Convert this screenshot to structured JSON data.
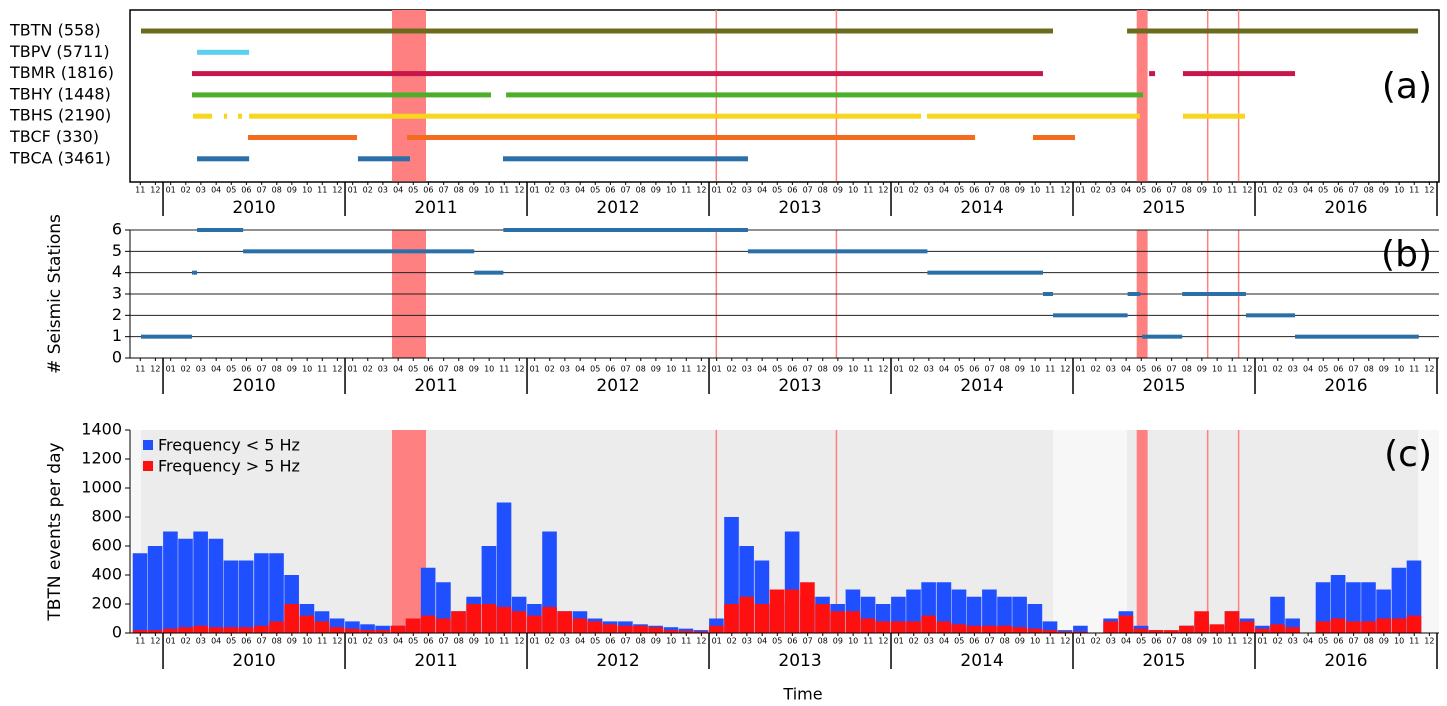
{
  "time_axis": {
    "xlim": [
      2009.835,
      2017.0
    ],
    "xlabel": "Time",
    "month_ticks": [
      {
        "value": 2009.875,
        "label": "11"
      },
      {
        "value": 2009.958,
        "label": "12"
      },
      {
        "value": 2010.042,
        "label": "01"
      },
      {
        "value": 2010.125,
        "label": "02"
      },
      {
        "value": 2010.208,
        "label": "03"
      },
      {
        "value": 2010.292,
        "label": "04"
      },
      {
        "value": 2010.375,
        "label": "05"
      },
      {
        "value": 2010.458,
        "label": "06"
      },
      {
        "value": 2010.542,
        "label": "07"
      },
      {
        "value": 2010.625,
        "label": "08"
      },
      {
        "value": 2010.708,
        "label": "09"
      },
      {
        "value": 2010.792,
        "label": "10"
      },
      {
        "value": 2010.875,
        "label": "11"
      },
      {
        "value": 2010.958,
        "label": "12"
      },
      {
        "value": 2011.042,
        "label": "01"
      },
      {
        "value": 2011.125,
        "label": "02"
      },
      {
        "value": 2011.208,
        "label": "03"
      },
      {
        "value": 2011.292,
        "label": "04"
      },
      {
        "value": 2011.375,
        "label": "05"
      },
      {
        "value": 2011.458,
        "label": "06"
      },
      {
        "value": 2011.542,
        "label": "07"
      },
      {
        "value": 2011.625,
        "label": "08"
      },
      {
        "value": 2011.708,
        "label": "09"
      },
      {
        "value": 2011.792,
        "label": "10"
      },
      {
        "value": 2011.875,
        "label": "11"
      },
      {
        "value": 2011.958,
        "label": "12"
      },
      {
        "value": 2012.042,
        "label": "01"
      },
      {
        "value": 2012.125,
        "label": "02"
      },
      {
        "value": 2012.208,
        "label": "03"
      },
      {
        "value": 2012.292,
        "label": "04"
      },
      {
        "value": 2012.375,
        "label": "05"
      },
      {
        "value": 2012.458,
        "label": "06"
      },
      {
        "value": 2012.542,
        "label": "07"
      },
      {
        "value": 2012.625,
        "label": "08"
      },
      {
        "value": 2012.708,
        "label": "09"
      },
      {
        "value": 2012.792,
        "label": "10"
      },
      {
        "value": 2012.875,
        "label": "11"
      },
      {
        "value": 2012.958,
        "label": "12"
      },
      {
        "value": 2013.042,
        "label": "01"
      },
      {
        "value": 2013.125,
        "label": "02"
      },
      {
        "value": 2013.208,
        "label": "03"
      },
      {
        "value": 2013.292,
        "label": "04"
      },
      {
        "value": 2013.375,
        "label": "05"
      },
      {
        "value": 2013.458,
        "label": "06"
      },
      {
        "value": 2013.542,
        "label": "07"
      },
      {
        "value": 2013.625,
        "label": "08"
      },
      {
        "value": 2013.708,
        "label": "09"
      },
      {
        "value": 2013.792,
        "label": "10"
      },
      {
        "value": 2013.875,
        "label": "11"
      },
      {
        "value": 2013.958,
        "label": "12"
      },
      {
        "value": 2014.042,
        "label": "01"
      },
      {
        "value": 2014.125,
        "label": "02"
      },
      {
        "value": 2014.208,
        "label": "03"
      },
      {
        "value": 2014.292,
        "label": "04"
      },
      {
        "value": 2014.375,
        "label": "05"
      },
      {
        "value": 2014.458,
        "label": "06"
      },
      {
        "value": 2014.542,
        "label": "07"
      },
      {
        "value": 2014.625,
        "label": "08"
      },
      {
        "value": 2014.708,
        "label": "09"
      },
      {
        "value": 2014.792,
        "label": "10"
      },
      {
        "value": 2014.875,
        "label": "11"
      },
      {
        "value": 2014.958,
        "label": "12"
      },
      {
        "value": 2015.042,
        "label": "01"
      },
      {
        "value": 2015.125,
        "label": "02"
      },
      {
        "value": 2015.208,
        "label": "03"
      },
      {
        "value": 2015.292,
        "label": "04"
      },
      {
        "value": 2015.375,
        "label": "05"
      },
      {
        "value": 2015.458,
        "label": "06"
      },
      {
        "value": 2015.542,
        "label": "07"
      },
      {
        "value": 2015.625,
        "label": "08"
      },
      {
        "value": 2015.708,
        "label": "09"
      },
      {
        "value": 2015.792,
        "label": "10"
      },
      {
        "value": 2015.875,
        "label": "11"
      },
      {
        "value": 2015.958,
        "label": "12"
      },
      {
        "value": 2016.042,
        "label": "01"
      },
      {
        "value": 2016.125,
        "label": "02"
      },
      {
        "value": 2016.208,
        "label": "03"
      },
      {
        "value": 2016.292,
        "label": "04"
      },
      {
        "value": 2016.375,
        "label": "05"
      },
      {
        "value": 2016.458,
        "label": "06"
      },
      {
        "value": 2016.542,
        "label": "07"
      },
      {
        "value": 2016.625,
        "label": "08"
      },
      {
        "value": 2016.708,
        "label": "09"
      },
      {
        "value": 2016.792,
        "label": "10"
      },
      {
        "value": 2016.875,
        "label": "11"
      },
      {
        "value": 2016.958,
        "label": "12"
      }
    ],
    "year_ticks": [
      {
        "value": 2010.5,
        "label": "2010"
      },
      {
        "value": 2011.5,
        "label": "2011"
      },
      {
        "value": 2012.5,
        "label": "2012"
      },
      {
        "value": 2013.5,
        "label": "2013"
      },
      {
        "value": 2014.5,
        "label": "2014"
      },
      {
        "value": 2015.5,
        "label": "2015"
      },
      {
        "value": 2016.5,
        "label": "2016"
      }
    ]
  },
  "highlights": {
    "spans": [
      [
        2011.258,
        2011.445
      ],
      [
        2015.35,
        2015.41
      ]
    ],
    "lines": [
      2013.04,
      2013.7,
      2015.74,
      2015.91
    ],
    "color": "#ff8080"
  },
  "chart_data": [
    {
      "type": "timeline",
      "label": "(a)",
      "stations": [
        {
          "name": "TBTN (558)",
          "color": "#6b6b1e",
          "segments": [
            [
              2009.879,
              2014.89
            ],
            [
              2015.297,
              2016.896
            ]
          ]
        },
        {
          "name": "TBPV (5711)",
          "color": "#5bd0f0",
          "segments": [
            [
              2010.187,
              2010.473
            ]
          ]
        },
        {
          "name": "TBMR (1816)",
          "color": "#c8154a",
          "segments": [
            [
              2010.159,
              2014.835
            ],
            [
              2015.418,
              2015.451
            ],
            [
              2015.604,
              2016.22
            ]
          ]
        },
        {
          "name": "TBHY (1448)",
          "color": "#4caf2a",
          "segments": [
            [
              2010.159,
              2011.802
            ],
            [
              2011.885,
              2015.385
            ]
          ]
        },
        {
          "name": "TBHS (2190)",
          "color": "#f7d520",
          "segments": [
            [
              2010.165,
              2010.269
            ],
            [
              2010.335,
              2010.352
            ],
            [
              2010.412,
              2010.434
            ],
            [
              2010.473,
              2014.165
            ],
            [
              2014.198,
              2015.368
            ],
            [
              2015.604,
              2015.945
            ]
          ]
        },
        {
          "name": "TBCF (330)",
          "color": "#f36b1c",
          "segments": [
            [
              2010.467,
              2011.066
            ],
            [
              2011.341,
              2014.462
            ],
            [
              2014.78,
              2015.011
            ]
          ]
        },
        {
          "name": "TBCA (3461)",
          "color": "#2a6fa8",
          "segments": [
            [
              2010.187,
              2010.473
            ],
            [
              2011.071,
              2011.357
            ],
            [
              2011.868,
              2013.214
            ]
          ]
        }
      ]
    },
    {
      "type": "step",
      "label": "(b)",
      "ylabel": "# Seismic Stations",
      "color": "#2a6fa8",
      "ylim": [
        0,
        6
      ],
      "yticks": [
        0,
        1,
        2,
        3,
        4,
        5,
        6
      ],
      "start": [
        2009.879,
        2010.159,
        2010.187,
        2010.44,
        2011.34,
        2011.71,
        2011.87,
        2013.214,
        2013.692,
        2014.2,
        2014.835,
        2014.89,
        2015.3,
        2015.38,
        2015.6,
        2015.95,
        2016.22
      ],
      "end": [
        2010.159,
        2010.187,
        2010.44,
        2011.34,
        2011.71,
        2011.87,
        2013.214,
        2013.692,
        2014.2,
        2014.835,
        2014.89,
        2015.3,
        2015.37,
        2015.6,
        2015.95,
        2016.22,
        2016.9
      ],
      "values": [
        1,
        4,
        6,
        5,
        5,
        4,
        6,
        5,
        5,
        4,
        3,
        2,
        3,
        1,
        3,
        2,
        1
      ]
    },
    {
      "type": "bar",
      "label": "(c)",
      "ylabel": "TBTN events per day",
      "ylim": [
        0,
        1400
      ],
      "yticks": [
        0,
        200,
        400,
        600,
        800,
        1000,
        1200,
        1400
      ],
      "x": [
        2009.875,
        2009.958,
        2010.042,
        2010.125,
        2010.208,
        2010.292,
        2010.375,
        2010.458,
        2010.542,
        2010.625,
        2010.708,
        2010.792,
        2010.875,
        2010.958,
        2011.042,
        2011.125,
        2011.208,
        2011.292,
        2011.375,
        2011.458,
        2011.542,
        2011.625,
        2011.708,
        2011.792,
        2011.875,
        2011.958,
        2012.042,
        2012.125,
        2012.208,
        2012.292,
        2012.375,
        2012.458,
        2012.542,
        2012.625,
        2012.708,
        2012.792,
        2012.875,
        2012.958,
        2013.042,
        2013.125,
        2013.208,
        2013.292,
        2013.375,
        2013.458,
        2013.542,
        2013.625,
        2013.708,
        2013.792,
        2013.875,
        2013.958,
        2014.042,
        2014.125,
        2014.208,
        2014.292,
        2014.375,
        2014.458,
        2014.542,
        2014.625,
        2014.708,
        2014.792,
        2014.875,
        2014.958,
        2015.042,
        2015.125,
        2015.208,
        2015.292,
        2015.375,
        2015.458,
        2015.542,
        2015.625,
        2015.708,
        2015.792,
        2015.875,
        2015.958,
        2016.042,
        2016.125,
        2016.208,
        2016.292,
        2016.375,
        2016.458,
        2016.542,
        2016.625,
        2016.708,
        2016.792,
        2016.875,
        2016.958
      ],
      "series": [
        {
          "name": "Frequency < 5 Hz",
          "color": "#1f4fff",
          "values": [
            550,
            600,
            700,
            650,
            700,
            650,
            500,
            500,
            550,
            550,
            400,
            200,
            150,
            100,
            80,
            60,
            50,
            50,
            50,
            450,
            350,
            150,
            250,
            600,
            900,
            250,
            200,
            700,
            150,
            150,
            100,
            80,
            80,
            60,
            50,
            40,
            30,
            20,
            100,
            800,
            600,
            500,
            200,
            700,
            250,
            250,
            200,
            300,
            250,
            200,
            250,
            300,
            350,
            350,
            300,
            250,
            300,
            250,
            250,
            200,
            80,
            20,
            50,
            null,
            100,
            150,
            50,
            20,
            10,
            50,
            100,
            50,
            150,
            100,
            50,
            250,
            100,
            null,
            350,
            400,
            350,
            350,
            300,
            450,
            500,
            null
          ]
        },
        {
          "name": "Frequency > 5 Hz",
          "color": "#ff1010",
          "values": [
            20,
            20,
            30,
            40,
            50,
            40,
            40,
            40,
            50,
            80,
            200,
            120,
            80,
            40,
            30,
            20,
            20,
            50,
            100,
            120,
            100,
            150,
            200,
            200,
            180,
            150,
            120,
            180,
            150,
            100,
            80,
            60,
            50,
            50,
            40,
            20,
            15,
            10,
            50,
            200,
            250,
            200,
            300,
            300,
            350,
            200,
            150,
            150,
            100,
            80,
            80,
            80,
            120,
            80,
            60,
            50,
            50,
            50,
            40,
            30,
            20,
            10,
            10,
            null,
            80,
            120,
            30,
            20,
            20,
            50,
            150,
            60,
            150,
            80,
            30,
            60,
            40,
            null,
            80,
            100,
            80,
            80,
            100,
            100,
            120,
            null
          ]
        }
      ]
    }
  ]
}
